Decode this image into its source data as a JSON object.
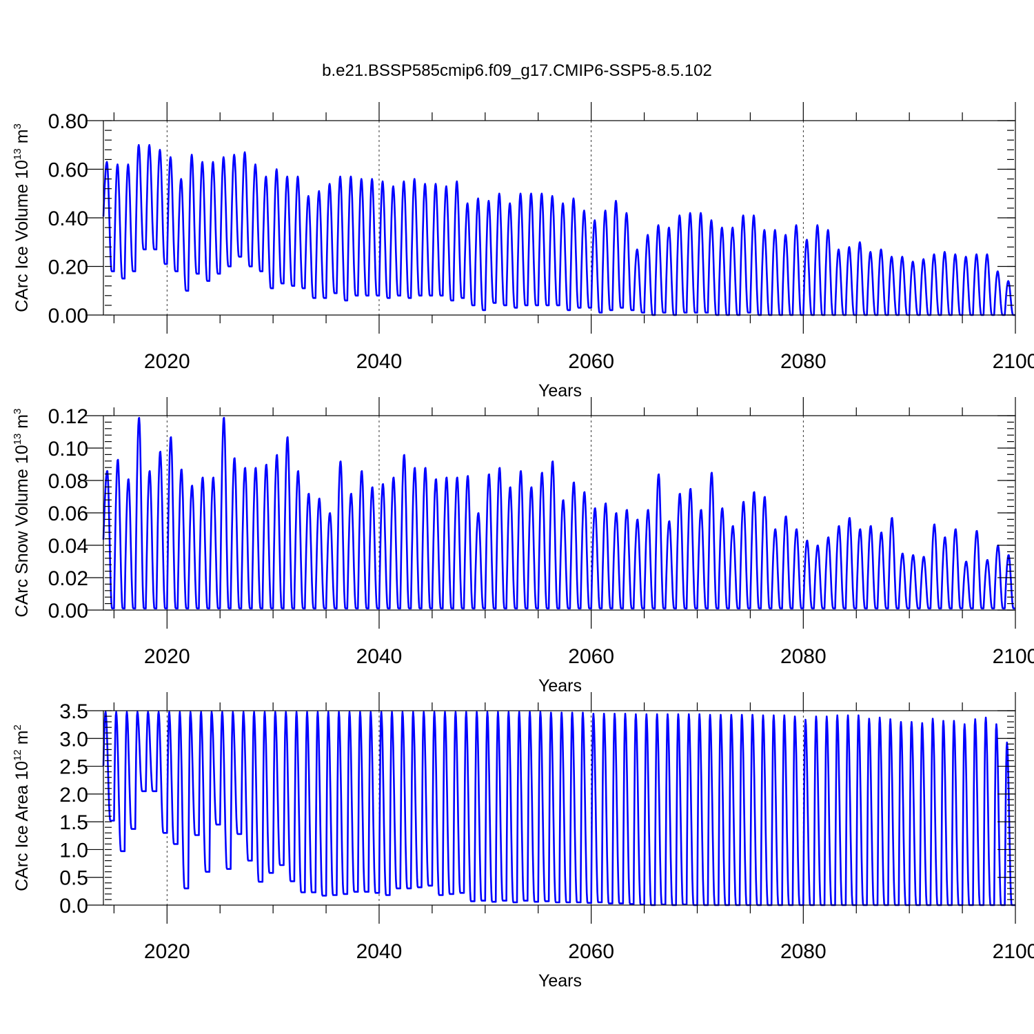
{
  "title": "b.e21.BSSP585cmip6.f09_g17.CMIP6-SSP5-8.5.102",
  "colors": {
    "line": "#0000ff",
    "axis": "#000000"
  },
  "chart_data": [
    {
      "type": "line",
      "xlabel": "Years",
      "ylabel": "CArc Ice Volume 10",
      "ylabel_exp": "13",
      "ylabel_unit": "m",
      "ylabel_unit_exp": "3",
      "xlim": [
        2014,
        2100
      ],
      "ylim": [
        0,
        0.8
      ],
      "xticks": [
        2020,
        2040,
        2060,
        2080,
        2100
      ],
      "xtick_labels": [
        "2020",
        "2040",
        "2060",
        "2080",
        "2100"
      ],
      "yticks": [
        0,
        0.2,
        0.4,
        0.6,
        0.8
      ],
      "ytick_labels": [
        "0.00",
        "0.20",
        "0.40",
        "0.60",
        "0.80"
      ],
      "grid": "dashed vertical lines at 2020, 2040, 2060, 2080",
      "cycle": "annual",
      "peak_offset": 0.33,
      "x": [
        2014,
        2015,
        2016,
        2017,
        2018,
        2019,
        2020,
        2021,
        2022,
        2023,
        2024,
        2025,
        2026,
        2027,
        2028,
        2029,
        2030,
        2031,
        2032,
        2033,
        2034,
        2035,
        2036,
        2037,
        2038,
        2039,
        2040,
        2041,
        2042,
        2043,
        2044,
        2045,
        2046,
        2047,
        2048,
        2049,
        2050,
        2051,
        2052,
        2053,
        2054,
        2055,
        2056,
        2057,
        2058,
        2059,
        2060,
        2061,
        2062,
        2063,
        2064,
        2065,
        2066,
        2067,
        2068,
        2069,
        2070,
        2071,
        2072,
        2073,
        2074,
        2075,
        2076,
        2077,
        2078,
        2079,
        2080,
        2081,
        2082,
        2083,
        2084,
        2085,
        2086,
        2087,
        2088,
        2089,
        2090,
        2091,
        2092,
        2093,
        2094,
        2095,
        2096,
        2097,
        2098,
        2099
      ],
      "annual_max": [
        0.63,
        0.62,
        0.62,
        0.7,
        0.7,
        0.68,
        0.65,
        0.56,
        0.66,
        0.63,
        0.63,
        0.65,
        0.66,
        0.67,
        0.62,
        0.57,
        0.6,
        0.57,
        0.57,
        0.49,
        0.51,
        0.54,
        0.57,
        0.57,
        0.56,
        0.56,
        0.55,
        0.53,
        0.55,
        0.56,
        0.54,
        0.54,
        0.53,
        0.55,
        0.46,
        0.48,
        0.47,
        0.5,
        0.46,
        0.5,
        0.5,
        0.5,
        0.49,
        0.46,
        0.48,
        0.43,
        0.39,
        0.43,
        0.47,
        0.42,
        0.27,
        0.33,
        0.37,
        0.36,
        0.41,
        0.42,
        0.42,
        0.39,
        0.36,
        0.36,
        0.41,
        0.41,
        0.35,
        0.35,
        0.33,
        0.37,
        0.31,
        0.37,
        0.35,
        0.27,
        0.28,
        0.3,
        0.26,
        0.27,
        0.24,
        0.24,
        0.22,
        0.23,
        0.25,
        0.26,
        0.25,
        0.24,
        0.25,
        0.25,
        0.18,
        0.14
      ],
      "annual_min": [
        0.18,
        0.15,
        0.18,
        0.27,
        0.27,
        0.21,
        0.18,
        0.1,
        0.17,
        0.14,
        0.17,
        0.2,
        0.24,
        0.2,
        0.18,
        0.11,
        0.13,
        0.12,
        0.11,
        0.07,
        0.07,
        0.09,
        0.06,
        0.08,
        0.08,
        0.08,
        0.07,
        0.08,
        0.07,
        0.08,
        0.08,
        0.08,
        0.06,
        0.07,
        0.04,
        0.02,
        0.05,
        0.04,
        0.03,
        0.04,
        0.04,
        0.04,
        0.04,
        0.02,
        0.03,
        0.03,
        0.01,
        0.02,
        0.03,
        0.02,
        0.01,
        0.0,
        0.01,
        0.0,
        0.01,
        0.01,
        0.01,
        0.0,
        0.0,
        0.0,
        0.01,
        0.0,
        0.0,
        0.0,
        0.0,
        0.0,
        0.0,
        0.0,
        0.0,
        0.0,
        0.0,
        0.0,
        0.0,
        0.0,
        0.0,
        0.0,
        0.0,
        0.0,
        0.0,
        0.0,
        0.0,
        0.0,
        0.0,
        0.0,
        0.0,
        0.0
      ]
    },
    {
      "type": "line",
      "xlabel": "Years",
      "ylabel": "CArc Snow Volume 10",
      "ylabel_exp": "13",
      "ylabel_unit": "m",
      "ylabel_unit_exp": "3",
      "xlim": [
        2014,
        2100
      ],
      "ylim": [
        0,
        0.12
      ],
      "xticks": [
        2020,
        2040,
        2060,
        2080,
        2100
      ],
      "xtick_labels": [
        "2020",
        "2040",
        "2060",
        "2080",
        "2100"
      ],
      "yticks": [
        0,
        0.02,
        0.04,
        0.06,
        0.08,
        0.1,
        0.12
      ],
      "ytick_labels": [
        "0.00",
        "0.02",
        "0.04",
        "0.06",
        "0.08",
        "0.10",
        "0.12"
      ],
      "grid": "dashed vertical lines at 2020, 2040, 2060, 2080",
      "cycle": "annual",
      "peak_offset": 0.36,
      "x": [
        2014,
        2015,
        2016,
        2017,
        2018,
        2019,
        2020,
        2021,
        2022,
        2023,
        2024,
        2025,
        2026,
        2027,
        2028,
        2029,
        2030,
        2031,
        2032,
        2033,
        2034,
        2035,
        2036,
        2037,
        2038,
        2039,
        2040,
        2041,
        2042,
        2043,
        2044,
        2045,
        2046,
        2047,
        2048,
        2049,
        2050,
        2051,
        2052,
        2053,
        2054,
        2055,
        2056,
        2057,
        2058,
        2059,
        2060,
        2061,
        2062,
        2063,
        2064,
        2065,
        2066,
        2067,
        2068,
        2069,
        2070,
        2071,
        2072,
        2073,
        2074,
        2075,
        2076,
        2077,
        2078,
        2079,
        2080,
        2081,
        2082,
        2083,
        2084,
        2085,
        2086,
        2087,
        2088,
        2089,
        2090,
        2091,
        2092,
        2093,
        2094,
        2095,
        2096,
        2097,
        2098,
        2099
      ],
      "annual_max": [
        0.086,
        0.093,
        0.081,
        0.119,
        0.086,
        0.098,
        0.107,
        0.087,
        0.077,
        0.082,
        0.082,
        0.119,
        0.094,
        0.088,
        0.088,
        0.09,
        0.096,
        0.107,
        0.086,
        0.072,
        0.069,
        0.06,
        0.092,
        0.072,
        0.086,
        0.076,
        0.078,
        0.082,
        0.096,
        0.088,
        0.088,
        0.081,
        0.082,
        0.082,
        0.083,
        0.06,
        0.084,
        0.088,
        0.076,
        0.086,
        0.076,
        0.085,
        0.092,
        0.068,
        0.079,
        0.073,
        0.063,
        0.066,
        0.06,
        0.062,
        0.056,
        0.062,
        0.084,
        0.055,
        0.072,
        0.075,
        0.062,
        0.085,
        0.063,
        0.052,
        0.067,
        0.073,
        0.07,
        0.05,
        0.058,
        0.05,
        0.043,
        0.04,
        0.045,
        0.052,
        0.057,
        0.05,
        0.052,
        0.048,
        0.057,
        0.035,
        0.034,
        0.033,
        0.053,
        0.045,
        0.05,
        0.03,
        0.049,
        0.031,
        0.04,
        0.034
      ],
      "annual_min": 0.001
    },
    {
      "type": "line",
      "xlabel": "Years",
      "ylabel": "CArc Ice Area 10",
      "ylabel_exp": "12",
      "ylabel_unit": "m",
      "ylabel_unit_exp": "2",
      "xlim": [
        2014,
        2100
      ],
      "ylim": [
        0,
        3.5
      ],
      "xticks": [
        2020,
        2040,
        2060,
        2080,
        2100
      ],
      "xtick_labels": [
        "2020",
        "2040",
        "2060",
        "2080",
        "2100"
      ],
      "yticks": [
        0,
        0.5,
        1.0,
        1.5,
        2.0,
        2.5,
        3.0,
        3.5
      ],
      "ytick_labels": [
        "0.0",
        "0.5",
        "1.0",
        "1.5",
        "2.0",
        "2.5",
        "3.0",
        "3.5"
      ],
      "grid": "dashed vertical lines at 2020, 2040, 2060, 2080",
      "cycle": "annual",
      "peak_offset": 0.2,
      "x": [
        2014,
        2015,
        2016,
        2017,
        2018,
        2019,
        2020,
        2021,
        2022,
        2023,
        2024,
        2025,
        2026,
        2027,
        2028,
        2029,
        2030,
        2031,
        2032,
        2033,
        2034,
        2035,
        2036,
        2037,
        2038,
        2039,
        2040,
        2041,
        2042,
        2043,
        2044,
        2045,
        2046,
        2047,
        2048,
        2049,
        2050,
        2051,
        2052,
        2053,
        2054,
        2055,
        2056,
        2057,
        2058,
        2059,
        2060,
        2061,
        2062,
        2063,
        2064,
        2065,
        2066,
        2067,
        2068,
        2069,
        2070,
        2071,
        2072,
        2073,
        2074,
        2075,
        2076,
        2077,
        2078,
        2079,
        2080,
        2081,
        2082,
        2083,
        2084,
        2085,
        2086,
        2087,
        2088,
        2089,
        2090,
        2091,
        2092,
        2093,
        2094,
        2095,
        2096,
        2097,
        2098,
        2099
      ],
      "annual_max": [
        3.48,
        3.48,
        3.48,
        3.48,
        3.48,
        3.48,
        3.48,
        3.48,
        3.48,
        3.48,
        3.48,
        3.48,
        3.48,
        3.48,
        3.48,
        3.48,
        3.48,
        3.48,
        3.48,
        3.48,
        3.48,
        3.48,
        3.48,
        3.48,
        3.48,
        3.48,
        3.48,
        3.48,
        3.48,
        3.48,
        3.48,
        3.48,
        3.48,
        3.48,
        3.48,
        3.48,
        3.48,
        3.48,
        3.48,
        3.48,
        3.48,
        3.48,
        3.47,
        3.47,
        3.47,
        3.47,
        3.45,
        3.45,
        3.45,
        3.45,
        3.44,
        3.44,
        3.44,
        3.44,
        3.44,
        3.44,
        3.44,
        3.43,
        3.43,
        3.43,
        3.43,
        3.43,
        3.42,
        3.42,
        3.42,
        3.4,
        3.34,
        3.4,
        3.4,
        3.42,
        3.42,
        3.42,
        3.36,
        3.38,
        3.35,
        3.3,
        3.3,
        3.28,
        3.36,
        3.32,
        3.32,
        3.26,
        3.35,
        3.38,
        3.26,
        2.93
      ],
      "annual_min": [
        1.52,
        0.97,
        1.37,
        2.05,
        2.05,
        1.3,
        1.1,
        0.3,
        1.26,
        0.6,
        1.45,
        0.65,
        1.28,
        0.8,
        0.42,
        0.58,
        0.72,
        0.43,
        0.23,
        0.23,
        0.17,
        0.18,
        0.2,
        0.24,
        0.24,
        0.22,
        0.18,
        0.3,
        0.3,
        0.32,
        0.35,
        0.18,
        0.2,
        0.22,
        0.07,
        0.08,
        0.06,
        0.08,
        0.05,
        0.08,
        0.06,
        0.07,
        0.05,
        0.05,
        0.05,
        0.04,
        0.05,
        0.03,
        0.03,
        0.02,
        0.01,
        0.0,
        0.01,
        0.0,
        0.01,
        0.0,
        0.0,
        0.0,
        0.0,
        0.0,
        0.0,
        0.0,
        0.0,
        0.0,
        0.0,
        0.0,
        0.0,
        0.0,
        0.0,
        0.0,
        0.0,
        0.0,
        0.0,
        0.0,
        0.0,
        0.0,
        0.0,
        0.0,
        0.0,
        0.0,
        0.0,
        0.0,
        0.0,
        0.0,
        0.0,
        0.0
      ]
    }
  ]
}
